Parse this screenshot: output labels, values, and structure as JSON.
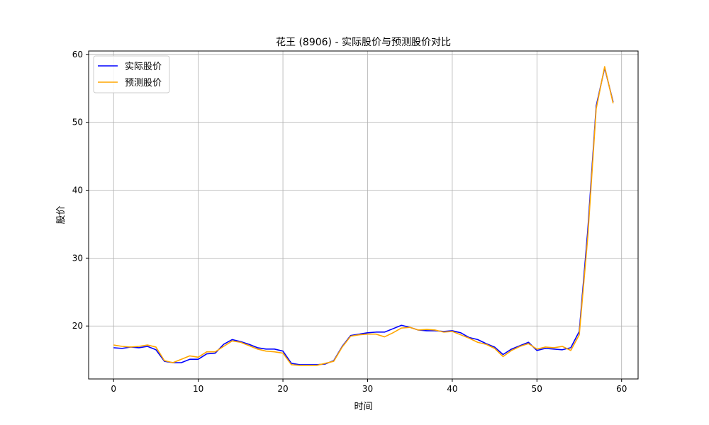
{
  "chart_data": {
    "type": "line",
    "title": "花王 (8906) - 实际股价与预测股价对比",
    "xlabel": "时间",
    "ylabel": "股价",
    "xlim": [
      -2.95,
      61.95
    ],
    "ylim": [
      12.2,
      60.5
    ],
    "x_ticks": [
      0,
      10,
      20,
      30,
      40,
      50,
      60
    ],
    "y_ticks": [
      20,
      30,
      40,
      50,
      60
    ],
    "grid": true,
    "legend_position": "top-left",
    "x": [
      0,
      1,
      2,
      3,
      4,
      5,
      6,
      7,
      8,
      9,
      10,
      11,
      12,
      13,
      14,
      15,
      16,
      17,
      18,
      19,
      20,
      21,
      22,
      23,
      24,
      25,
      26,
      27,
      28,
      29,
      30,
      31,
      32,
      33,
      34,
      35,
      36,
      37,
      38,
      39,
      40,
      41,
      42,
      43,
      44,
      45,
      46,
      47,
      48,
      49,
      50,
      51,
      52,
      53,
      54,
      55,
      56,
      57,
      58,
      59
    ],
    "series": [
      {
        "name": "实际股价",
        "color": "#0000ff",
        "values": [
          16.8,
          16.7,
          16.9,
          16.8,
          17.0,
          16.5,
          14.8,
          14.6,
          14.6,
          15.1,
          15.1,
          15.9,
          16.0,
          17.3,
          18.0,
          17.7,
          17.3,
          16.8,
          16.6,
          16.6,
          16.3,
          14.5,
          14.3,
          14.3,
          14.3,
          14.4,
          14.9,
          17.0,
          18.6,
          18.8,
          19.0,
          19.1,
          19.1,
          19.6,
          20.1,
          19.8,
          19.4,
          19.3,
          19.3,
          19.2,
          19.3,
          19.0,
          18.3,
          18.0,
          17.4,
          16.9,
          15.8,
          16.6,
          17.1,
          17.6,
          16.4,
          16.7,
          16.6,
          16.5,
          16.8,
          19.2,
          34.0,
          52.4,
          58.0,
          53.0
        ]
      },
      {
        "name": "预测股价",
        "color": "#ffa500",
        "values": [
          17.2,
          17.0,
          16.9,
          17.0,
          17.2,
          16.9,
          14.9,
          14.6,
          15.1,
          15.6,
          15.4,
          16.2,
          16.2,
          17.0,
          17.8,
          17.6,
          17.1,
          16.6,
          16.3,
          16.2,
          16.0,
          14.3,
          14.2,
          14.2,
          14.2,
          14.5,
          14.8,
          16.9,
          18.5,
          18.7,
          18.8,
          18.8,
          18.4,
          19.0,
          19.7,
          19.8,
          19.4,
          19.5,
          19.4,
          19.1,
          19.2,
          18.7,
          18.2,
          17.6,
          17.3,
          16.7,
          15.5,
          16.4,
          17.0,
          17.4,
          16.6,
          16.9,
          16.8,
          17.0,
          16.4,
          18.7,
          33.0,
          52.0,
          58.2,
          52.8
        ]
      }
    ]
  }
}
